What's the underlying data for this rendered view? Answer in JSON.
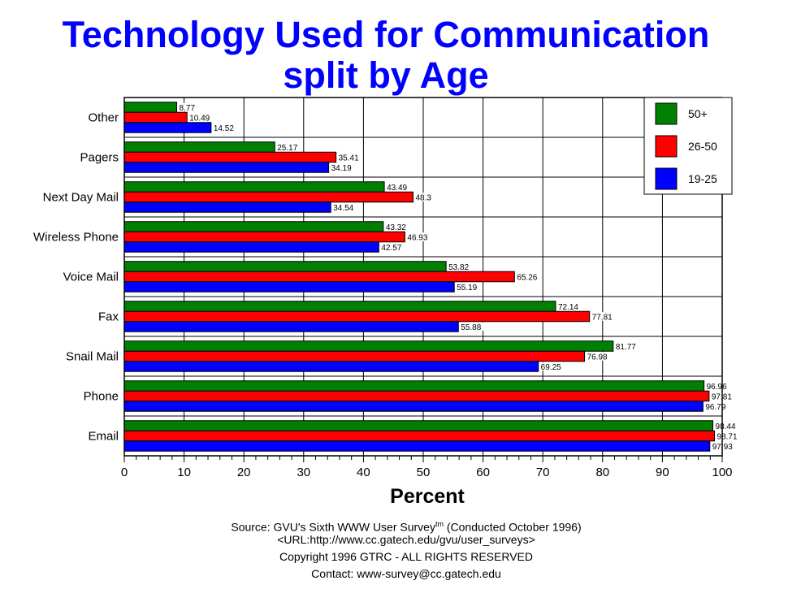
{
  "title_line1": "Technology Used for Communication",
  "title_line2": "split by Age",
  "footer": {
    "source_prefix": "Source: GVU's Sixth WWW User Survey",
    "source_sup": "tm",
    "source_suffix": "  (Conducted October 1996)",
    "url": "<URL:http://www.cc.gatech.edu/gvu/user_surveys>",
    "copyright": "Copyright 1996 GTRC -  ALL RIGHTS RESERVED",
    "contact": "Contact: www-survey@cc.gatech.edu"
  },
  "chart_data": {
    "type": "bar",
    "orientation": "horizontal",
    "title": "Technology Used for Communication split by Age",
    "xlabel": "Percent",
    "ylabel": "",
    "xlim": [
      0,
      100
    ],
    "xticks": [
      0,
      10,
      20,
      30,
      40,
      50,
      60,
      70,
      80,
      90,
      100
    ],
    "grid": true,
    "legend_position": "top-right",
    "categories": [
      "Other",
      "Pagers",
      "Next Day Mail",
      "Wireless Phone",
      "Voice Mail",
      "Fax",
      "Snail Mail",
      "Phone",
      "Email"
    ],
    "series": [
      {
        "name": "50+",
        "color": "#008000",
        "values": [
          8.77,
          25.17,
          43.49,
          43.32,
          53.82,
          72.14,
          81.77,
          96.96,
          98.44
        ]
      },
      {
        "name": "26-50",
        "color": "#ff0000",
        "values": [
          10.49,
          35.41,
          48.3,
          46.93,
          65.26,
          77.81,
          76.98,
          97.81,
          98.71
        ]
      },
      {
        "name": "19-25",
        "color": "#0000ff",
        "values": [
          14.52,
          34.19,
          34.54,
          42.57,
          55.19,
          55.88,
          69.25,
          96.79,
          97.93
        ]
      }
    ]
  }
}
